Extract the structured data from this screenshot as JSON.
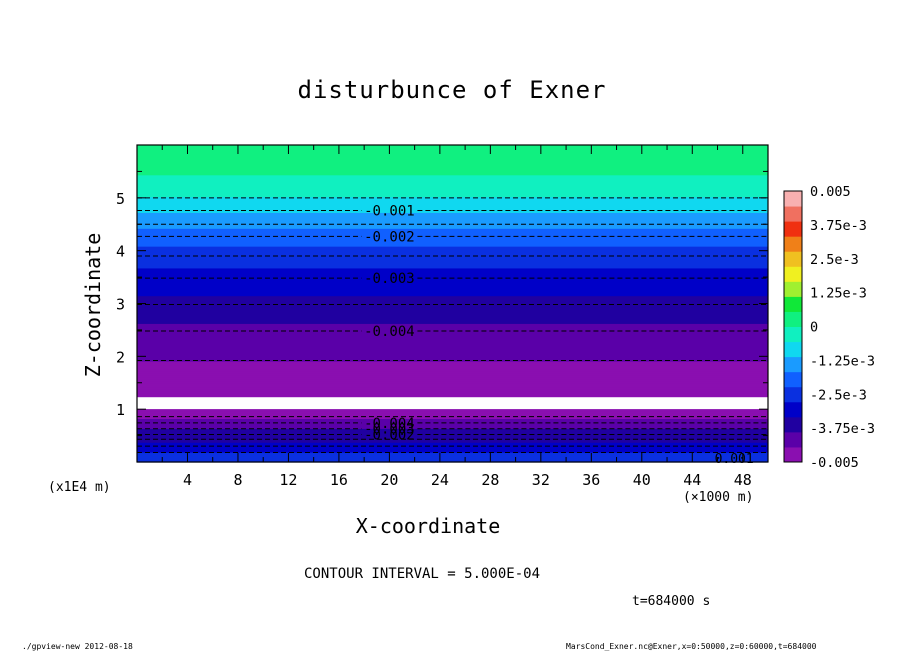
{
  "chart_data": {
    "type": "heatmap",
    "title": "disturbunce of Exner",
    "xlabel": "X-coordinate",
    "ylabel": "Z-coordinate",
    "x_unit": "(×1000 m)",
    "y_unit": "(x1E4 m)",
    "xlim": [
      0,
      50
    ],
    "ylim": [
      0,
      6
    ],
    "x_ticks": [
      "4",
      "8",
      "12",
      "16",
      "20",
      "24",
      "28",
      "32",
      "36",
      "40",
      "44",
      "48"
    ],
    "y_ticks": [
      "1",
      "2",
      "3",
      "4",
      "5"
    ],
    "z_profile": [
      {
        "z": 0.0,
        "value": -0.0028
      },
      {
        "z": 0.1,
        "value": -0.0025
      },
      {
        "z": 0.3,
        "value": -0.0032
      },
      {
        "z": 0.5,
        "value": -0.0036
      },
      {
        "z": 0.7,
        "value": -0.004
      },
      {
        "z": 0.85,
        "value": -0.0045
      },
      {
        "z": 1.0,
        "value": -0.0048
      },
      {
        "z": 1.2,
        "value": -0.0049
      },
      {
        "z": 1.5,
        "value": -0.0047
      },
      {
        "z": 2.0,
        "value": -0.0044
      },
      {
        "z": 2.5,
        "value": -0.004
      },
      {
        "z": 3.0,
        "value": -0.0035
      },
      {
        "z": 3.5,
        "value": -0.003
      },
      {
        "z": 4.0,
        "value": -0.0024
      },
      {
        "z": 4.5,
        "value": -0.0015
      },
      {
        "z": 5.0,
        "value": -0.0006
      },
      {
        "z": 5.5,
        "value": 0.0001
      },
      {
        "z": 6.0,
        "value": 0.0003
      }
    ],
    "undefined_band": [
      1.0,
      1.22
    ],
    "contour_lines": [
      {
        "z": 5.0,
        "label": ""
      },
      {
        "z": 4.76,
        "label": "-0.001"
      },
      {
        "z": 4.5,
        "label": ""
      },
      {
        "z": 4.27,
        "label": "-0.002"
      },
      {
        "z": 3.9,
        "label": ""
      },
      {
        "z": 3.48,
        "label": "-0.003"
      },
      {
        "z": 2.98,
        "label": ""
      },
      {
        "z": 2.48,
        "label": "-0.004"
      },
      {
        "z": 1.92,
        "label": ""
      },
      {
        "z": 0.86,
        "label": ""
      },
      {
        "z": 0.74,
        "label": "-0.004"
      },
      {
        "z": 0.63,
        "label": "-0.003"
      },
      {
        "z": 0.52,
        "label": "-0.002"
      },
      {
        "z": 0.43,
        "label": ""
      },
      {
        "z": 0.3,
        "label": ""
      },
      {
        "z": 0.18,
        "label": ""
      }
    ],
    "contour_label_x": 20,
    "corner_label": {
      "x": 47,
      "z": 0.0,
      "text": "0.001"
    },
    "colorbar": {
      "tick_labels": [
        "0.005",
        "3.75e-3",
        "2.5e-3",
        "1.25e-3",
        "0",
        "-1.25e-3",
        "-2.5e-3",
        "-3.75e-3",
        "-0.005"
      ],
      "range": [
        -0.005,
        0.005
      ],
      "colors": [
        "#8a0fb0",
        "#5a00a8",
        "#2000a0",
        "#0000c8",
        "#0a30e0",
        "#1060ff",
        "#1a9bff",
        "#10d8f0",
        "#10f0c0",
        "#10f080",
        "#10e838",
        "#a0f030",
        "#f0f020",
        "#f0c020",
        "#f08018",
        "#f03010",
        "#f07060",
        "#f8b0b0"
      ]
    },
    "contour_interval_text": "CONTOUR INTERVAL = 5.000E-04",
    "time_text": "t=684000 s"
  },
  "footer": {
    "left": "./gpview-new  2012-08-18",
    "right": "MarsCond_Exner.nc@Exner,x=0:50000,z=0:60000,t=684000"
  }
}
